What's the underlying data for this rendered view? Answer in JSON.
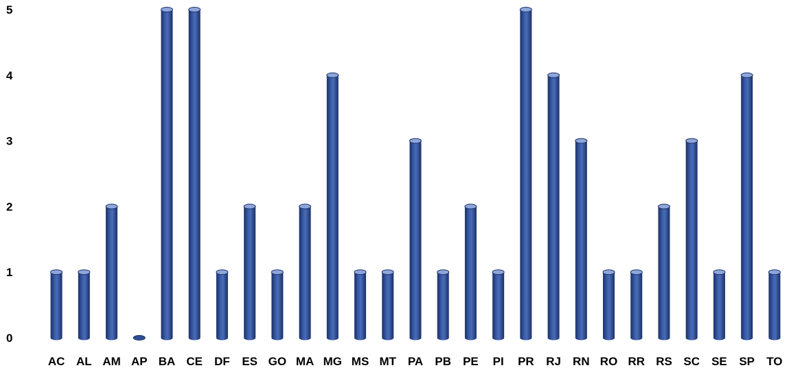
{
  "chart_data": {
    "type": "bar",
    "style": "3d-cylinder",
    "categories": [
      "AC",
      "AL",
      "AM",
      "AP",
      "BA",
      "CE",
      "DF",
      "ES",
      "GO",
      "MA",
      "MG",
      "MS",
      "MT",
      "PA",
      "PB",
      "PE",
      "PI",
      "PR",
      "RJ",
      "RN",
      "RO",
      "RR",
      "RS",
      "SC",
      "SE",
      "SP",
      "TO"
    ],
    "values": [
      1,
      1,
      2,
      0,
      5,
      5,
      1,
      2,
      1,
      2,
      4,
      1,
      1,
      3,
      1,
      2,
      1,
      5,
      4,
      3,
      1,
      1,
      2,
      3,
      1,
      4,
      1
    ],
    "title": "",
    "xlabel": "",
    "ylabel": "",
    "ylim": [
      0,
      5
    ],
    "yticks": [
      0,
      1,
      2,
      3,
      4,
      5
    ],
    "grid": false,
    "legend": "none",
    "colors": {
      "bar": "#2e4f96",
      "bar_dark": "#1a3068",
      "bar_light": "#5b7cc4",
      "top": "#8fa6db"
    }
  }
}
